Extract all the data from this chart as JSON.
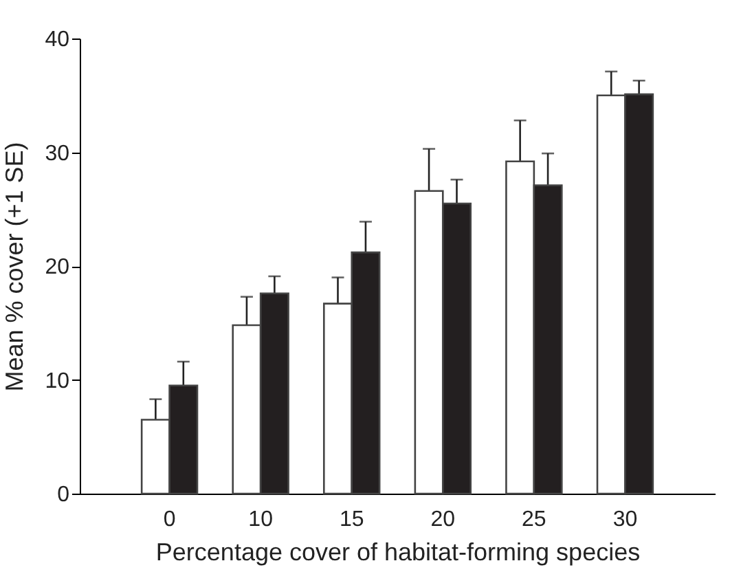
{
  "chart_data": {
    "type": "bar",
    "xlabel": "Percentage cover of habitat-forming species",
    "ylabel": "Mean % cover (+1 SE)",
    "categories": [
      "0",
      "10",
      "15",
      "20",
      "25",
      "30"
    ],
    "series": [
      {
        "color": "#ffffff",
        "values": [
          6.5,
          14.8,
          16.7,
          26.6,
          29.2,
          35.0
        ],
        "errors": [
          [
            6.5,
            8.3
          ],
          [
            14.8,
            17.3
          ],
          [
            16.7,
            19.0
          ],
          [
            26.6,
            30.3
          ],
          [
            29.2,
            32.8
          ],
          [
            35.0,
            37.1
          ]
        ]
      },
      {
        "color": "#231f20",
        "values": [
          9.5,
          17.6,
          21.2,
          25.5,
          27.1,
          35.1
        ],
        "errors": [
          [
            9.5,
            11.6
          ],
          [
            17.6,
            19.1
          ],
          [
            21.2,
            23.9
          ],
          [
            25.5,
            27.6
          ],
          [
            27.1,
            29.9
          ],
          [
            35.1,
            36.3
          ]
        ]
      }
    ],
    "ylim": [
      0,
      40
    ],
    "yticks": [
      0,
      10,
      20,
      30,
      40
    ],
    "grid": false,
    "legend": false
  }
}
